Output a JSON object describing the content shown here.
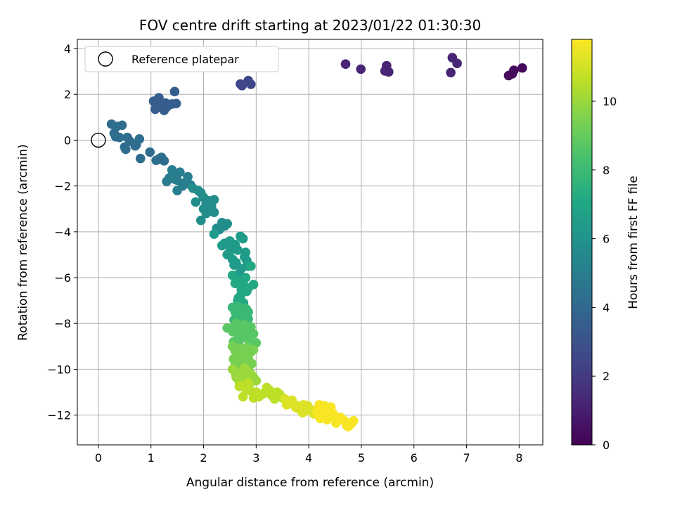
{
  "chart_data": {
    "type": "scatter",
    "title": "FOV centre drift starting at 2023/01/22 01:30:30",
    "xlabel": "Angular distance from reference (arcmin)",
    "ylabel": "Rotation from reference (arcmin)",
    "xlim": [
      -0.4,
      8.45
    ],
    "ylim": [
      -13.3,
      4.4
    ],
    "xticks": [
      0,
      1,
      2,
      3,
      4,
      5,
      6,
      7,
      8
    ],
    "yticks": [
      -12,
      -10,
      -8,
      -6,
      -4,
      -2,
      0,
      2,
      4
    ],
    "grid": true,
    "legend": {
      "position": "upper-left",
      "entries": [
        {
          "label": "Reference platepar",
          "marker": "open-circle",
          "x": 0,
          "y": 0
        }
      ]
    },
    "colorbar": {
      "label": "Hours from first FF file",
      "colormap": "viridis",
      "range": [
        0,
        11.8
      ],
      "ticks": [
        0,
        2,
        4,
        6,
        8,
        10
      ]
    },
    "point_series": [
      {
        "name": "",
        "c": 0.3,
        "x": [
          7.8,
          7.87,
          7.9,
          8.06
        ],
        "y": [
          2.82,
          2.9,
          3.05,
          3.15
        ]
      },
      {
        "name": "",
        "c": 1.2,
        "x": [
          6.7,
          6.73,
          6.82,
          5.45,
          5.48,
          5.52,
          4.99,
          4.7
        ],
        "y": [
          2.95,
          3.6,
          3.35,
          3.02,
          3.25,
          2.98,
          3.1,
          3.32
        ]
      },
      {
        "name": "",
        "c": 2.5,
        "x": [
          2.7,
          2.73,
          2.85,
          2.9
        ],
        "y": [
          2.45,
          2.38,
          2.6,
          2.44
        ]
      },
      {
        "name": "",
        "c": 3.5,
        "x": [
          1.05,
          1.1,
          1.15,
          1.2,
          1.25,
          1.3,
          1.35,
          1.4,
          1.48,
          1.45,
          1.08,
          1.12,
          1.22,
          1.28,
          1.18
        ],
        "y": [
          1.7,
          1.5,
          1.85,
          1.6,
          1.3,
          1.45,
          1.55,
          1.58,
          1.6,
          2.12,
          1.35,
          1.75,
          1.4,
          1.62,
          1.5
        ]
      },
      {
        "name": "",
        "c": 4.2,
        "x": [
          0.25,
          0.3,
          0.35,
          0.4,
          0.45,
          0.5,
          0.55,
          0.6,
          0.72,
          0.78,
          0.8,
          0.98,
          1.1,
          1.15,
          1.2,
          1.25,
          0.33,
          0.52,
          0.7
        ],
        "y": [
          0.7,
          0.3,
          0.6,
          0.12,
          0.65,
          -0.3,
          0.12,
          -0.05,
          -0.2,
          0.05,
          -0.8,
          -0.52,
          -0.88,
          -0.82,
          -0.75,
          -0.9,
          0.15,
          -0.4,
          -0.25
        ]
      },
      {
        "name": "",
        "c": 5.0,
        "x": [
          1.3,
          1.4,
          1.45,
          1.5,
          1.55,
          1.6,
          1.7,
          1.35,
          1.5,
          1.75,
          1.45,
          1.65
        ],
        "y": [
          -1.8,
          -1.3,
          -1.5,
          -1.75,
          -1.4,
          -2.0,
          -1.6,
          -1.65,
          -2.2,
          -1.95,
          -1.7,
          -1.85
        ]
      },
      {
        "name": "",
        "c": 5.7,
        "x": [
          1.8,
          1.9,
          1.95,
          2.0,
          2.05,
          2.1,
          2.2,
          1.85,
          2.0,
          2.15,
          2.2,
          2.35,
          2.4,
          2.45,
          2.25,
          2.3,
          1.95,
          2.05
        ],
        "y": [
          -2.1,
          -2.2,
          -2.3,
          -2.5,
          -2.75,
          -2.65,
          -2.6,
          -2.7,
          -3.0,
          -2.9,
          -3.15,
          -3.6,
          -3.75,
          -3.65,
          -3.85,
          -3.9,
          -3.5,
          -3.2
        ]
      },
      {
        "name": "",
        "c": 6.4,
        "x": [
          2.2,
          2.35,
          2.4,
          2.5,
          2.55,
          2.6,
          2.65,
          2.7,
          2.75,
          2.8,
          2.85,
          2.45,
          2.55,
          2.62,
          2.72,
          2.78,
          2.5,
          2.68,
          2.58,
          2.82
        ],
        "y": [
          -4.1,
          -4.6,
          -4.5,
          -4.4,
          -4.7,
          -4.55,
          -4.8,
          -4.2,
          -4.3,
          -4.9,
          -5.5,
          -5.0,
          -5.2,
          -5.35,
          -5.6,
          -5.1,
          -4.85,
          -5.8,
          -5.45,
          -5.25
        ]
      },
      {
        "name": "",
        "c": 7.1,
        "x": [
          2.55,
          2.62,
          2.68,
          2.72,
          2.75,
          2.8,
          2.82,
          2.7,
          2.66,
          2.76,
          2.9,
          2.95,
          2.6,
          2.85,
          2.72,
          2.65
        ],
        "y": [
          -5.9,
          -6.1,
          -6.3,
          -6.5,
          -6.2,
          -6.0,
          -6.6,
          -6.8,
          -6.9,
          -7.1,
          -5.5,
          -6.3,
          -6.25,
          -6.45,
          -6.55,
          -7.0
        ]
      },
      {
        "name": "",
        "c": 7.9,
        "x": [
          2.55,
          2.6,
          2.65,
          2.7,
          2.75,
          2.8,
          2.85,
          2.6,
          2.7,
          2.8,
          2.65,
          2.75,
          2.85,
          2.58,
          2.72,
          2.82,
          2.68
        ],
        "y": [
          -7.3,
          -7.5,
          -7.7,
          -7.45,
          -7.6,
          -7.35,
          -7.8,
          -7.9,
          -8.0,
          -7.65,
          -7.25,
          -7.55,
          -7.5,
          -7.85,
          -7.75,
          -7.4,
          -7.95
        ]
      },
      {
        "name": "",
        "c": 8.7,
        "x": [
          2.45,
          2.55,
          2.6,
          2.65,
          2.7,
          2.75,
          2.8,
          2.85,
          2.95,
          3.0,
          2.62,
          2.72,
          2.82,
          2.9,
          2.57,
          2.78,
          2.68,
          2.88
        ],
        "y": [
          -8.2,
          -8.35,
          -8.1,
          -8.5,
          -8.6,
          -8.4,
          -8.3,
          -8.7,
          -8.45,
          -8.85,
          -8.0,
          -8.25,
          -8.55,
          -8.15,
          -8.8,
          -8.05,
          -8.75,
          -8.9
        ]
      },
      {
        "name": "",
        "c": 9.4,
        "x": [
          2.55,
          2.6,
          2.65,
          2.7,
          2.75,
          2.8,
          2.85,
          2.9,
          2.95,
          2.6,
          2.7,
          2.8,
          2.57,
          2.67,
          2.77,
          2.87,
          2.62,
          2.72,
          2.82,
          2.92
        ],
        "y": [
          -9.0,
          -9.2,
          -9.4,
          -9.1,
          -9.6,
          -9.3,
          -9.5,
          -9.25,
          -9.15,
          -9.7,
          -9.9,
          -9.8,
          -9.55,
          -9.65,
          -9.45,
          -9.85,
          -9.95,
          -9.35,
          -9.05,
          -9.75
        ]
      },
      {
        "name": "",
        "c": 10.0,
        "x": [
          2.55,
          2.6,
          2.65,
          2.7,
          2.75,
          2.8,
          2.85,
          2.95,
          3.0,
          2.72,
          2.82,
          2.62,
          2.9,
          2.78,
          2.68,
          2.88
        ],
        "y": [
          -10.0,
          -10.15,
          -10.3,
          -10.2,
          -10.25,
          -10.1,
          -10.4,
          -10.35,
          -10.5,
          -10.45,
          -10.05,
          -10.35,
          -10.2,
          -9.95,
          -10.55,
          -10.6
        ]
      },
      {
        "name": "",
        "c": 10.6,
        "x": [
          2.7,
          2.8,
          2.9,
          3.0,
          3.1,
          3.2,
          3.3,
          2.85,
          3.05,
          3.25,
          2.95,
          3.15,
          2.75,
          3.35,
          2.68,
          3.4,
          3.45,
          3.5
        ],
        "y": [
          -10.7,
          -10.85,
          -10.95,
          -11.0,
          -11.1,
          -10.8,
          -11.15,
          -10.6,
          -11.2,
          -10.9,
          -11.25,
          -11.05,
          -11.2,
          -11.3,
          -10.75,
          -11.0,
          -11.1,
          -11.25
        ]
      },
      {
        "name": "",
        "c": 11.2,
        "x": [
          3.55,
          3.6,
          3.7,
          3.8,
          3.9,
          4.0,
          3.65,
          3.75,
          3.85,
          3.95,
          4.05,
          4.1,
          3.58,
          3.68,
          3.78,
          3.88,
          3.98,
          4.12
        ],
        "y": [
          -11.3,
          -11.4,
          -11.5,
          -11.6,
          -11.55,
          -11.7,
          -11.45,
          -11.65,
          -11.75,
          -11.8,
          -11.85,
          -11.95,
          -11.55,
          -11.35,
          -11.7,
          -11.9,
          -11.6,
          -11.8
        ]
      },
      {
        "name": "",
        "c": 11.7,
        "x": [
          4.15,
          4.2,
          4.25,
          4.3,
          4.35,
          4.4,
          4.5,
          4.6,
          4.7,
          4.75,
          4.8,
          4.85,
          4.22,
          4.32,
          4.42,
          4.52,
          4.65,
          4.72,
          4.2,
          4.28,
          4.45
        ],
        "y": [
          -11.9,
          -12.0,
          -11.7,
          -11.6,
          -12.2,
          -11.85,
          -12.05,
          -12.1,
          -12.3,
          -12.5,
          -12.4,
          -12.25,
          -12.15,
          -11.95,
          -11.65,
          -12.35,
          -12.2,
          -12.45,
          -11.55,
          -12.1,
          -11.9
        ]
      }
    ]
  }
}
